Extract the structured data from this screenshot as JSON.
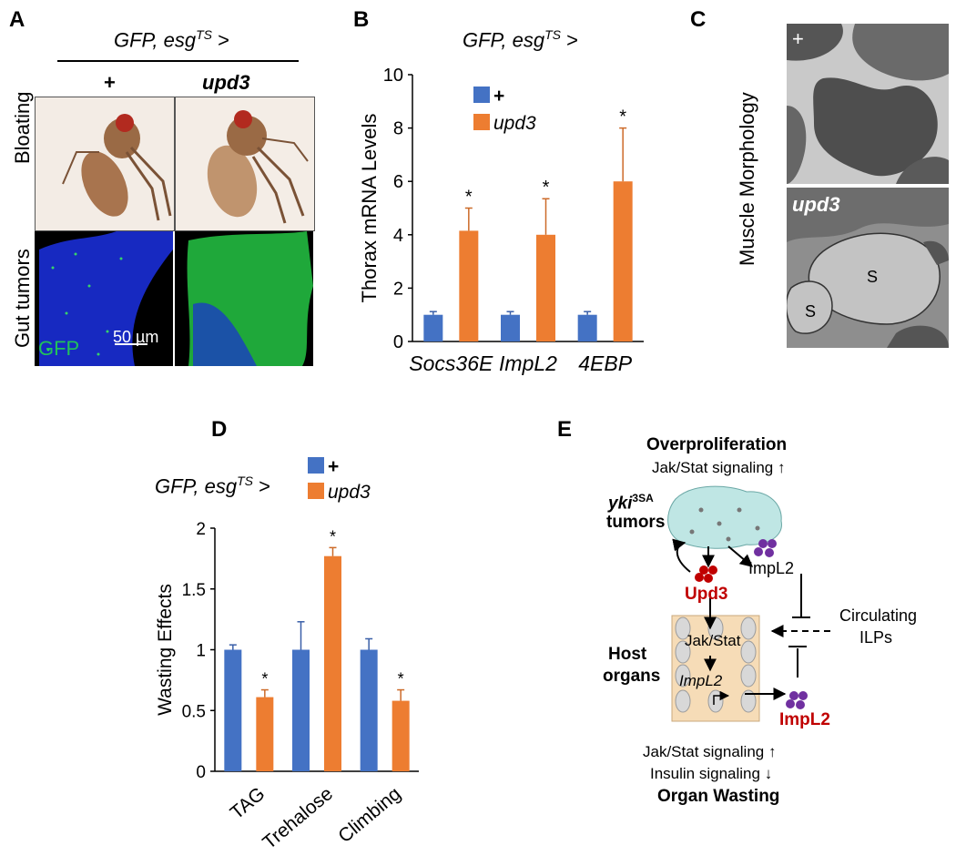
{
  "panels": {
    "a": {
      "label": "A",
      "genotype_main": "GFP, esg",
      "genotype_sup": "TS",
      "genotype_tail": " >",
      "col_plus": "+",
      "col_upd3": "upd3",
      "row_bloating": "Bloating",
      "row_gut": "Gut tumors",
      "gfp_label": "GFP",
      "scale_label": "50 µm"
    },
    "b": {
      "label": "B",
      "genotype_main": "GFP, esg",
      "genotype_sup": "TS",
      "genotype_tail": " >"
    },
    "c": {
      "label": "C",
      "ylabel": "Muscle Morphology",
      "tag_plus": "+",
      "tag_upd3": "upd3",
      "s1": "S",
      "s2": "S"
    },
    "d": {
      "label": "D",
      "genotype_main": "GFP, esg",
      "genotype_sup": "TS",
      "genotype_tail": " >"
    },
    "e": {
      "label": "E",
      "overproliferation": "Overproliferation",
      "jak_top": "Jak/Stat signaling",
      "yki_main": "yki",
      "yki_sup": "3SA",
      "tumors": "tumors",
      "upd3": "Upd3",
      "impl2_top": "ImpL2",
      "circulating": "Circulating",
      "ilps": "ILPs",
      "host": "Host",
      "organs": "organs",
      "jak_inner": "Jak/Stat",
      "impl2_inner": "ImpL2",
      "impl2_bottom": "ImpL2",
      "jak_bottom": "Jak/Stat signaling",
      "insulin": "Insulin signaling",
      "wasting": "Organ Wasting",
      "arrow_up": "↑",
      "arrow_down": "↓"
    }
  },
  "chart_data": [
    {
      "type": "bar",
      "panel": "B",
      "categories": [
        "Socs36E",
        "ImpL2",
        "4EBP"
      ],
      "series": [
        {
          "name": "+",
          "color": "#4472C4",
          "values": [
            1.0,
            1.0,
            1.0
          ],
          "errors": [
            0.12,
            0.12,
            0.12
          ]
        },
        {
          "name": "upd3",
          "color": "#ED7D31",
          "values": [
            4.15,
            4.0,
            6.0
          ],
          "errors": [
            0.85,
            1.35,
            2.0
          ]
        }
      ],
      "significance": [
        "*",
        "*",
        "*"
      ],
      "ylabel": "Thorax mRNA Levels",
      "ylim": [
        0,
        10
      ],
      "yticks": [
        "0",
        "2",
        "4",
        "6",
        "8",
        "10"
      ],
      "legend_position": "top-left",
      "grid": false
    },
    {
      "type": "bar",
      "panel": "D",
      "categories": [
        "TAG",
        "Trehalose",
        "Climbing"
      ],
      "series": [
        {
          "name": "+",
          "color": "#4472C4",
          "values": [
            1.0,
            1.0,
            1.0
          ],
          "errors": [
            0.04,
            0.23,
            0.09
          ]
        },
        {
          "name": "upd3",
          "color": "#ED7D31",
          "values": [
            0.61,
            1.77,
            0.58
          ],
          "errors": [
            0.06,
            0.07,
            0.09
          ]
        }
      ],
      "significance": [
        "*",
        "*",
        "*"
      ],
      "ylabel": "Wasting Effects",
      "ylim": [
        0,
        2
      ],
      "yticks": [
        "0",
        "0.5",
        "1",
        "1.5",
        "2"
      ],
      "legend_position": "top",
      "grid": false
    }
  ]
}
